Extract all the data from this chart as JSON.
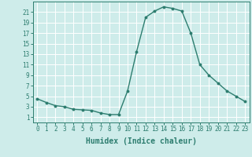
{
  "x": [
    0,
    1,
    2,
    3,
    4,
    5,
    6,
    7,
    8,
    9,
    10,
    11,
    12,
    13,
    14,
    15,
    16,
    17,
    18,
    19,
    20,
    21,
    22,
    23
  ],
  "y": [
    4.5,
    3.8,
    3.2,
    3.0,
    2.5,
    2.4,
    2.3,
    1.8,
    1.5,
    1.5,
    6.0,
    13.5,
    20.0,
    21.2,
    22.0,
    21.7,
    21.2,
    17.0,
    11.0,
    9.0,
    7.5,
    6.0,
    5.0,
    4.0
  ],
  "line_color": "#2d7d6f",
  "marker": "o",
  "markersize": 1.8,
  "linewidth": 1.0,
  "bg_color": "#ceecea",
  "grid_color": "#ffffff",
  "xlabel": "Humidex (Indice chaleur)",
  "xlabel_fontsize": 7,
  "tick_fontsize": 5.5,
  "ylim": [
    0,
    23
  ],
  "xlim": [
    -0.5,
    23.5
  ],
  "yticks": [
    1,
    3,
    5,
    7,
    9,
    11,
    13,
    15,
    17,
    19,
    21
  ],
  "xticks": [
    0,
    1,
    2,
    3,
    4,
    5,
    6,
    7,
    8,
    9,
    10,
    11,
    12,
    13,
    14,
    15,
    16,
    17,
    18,
    19,
    20,
    21,
    22,
    23
  ]
}
